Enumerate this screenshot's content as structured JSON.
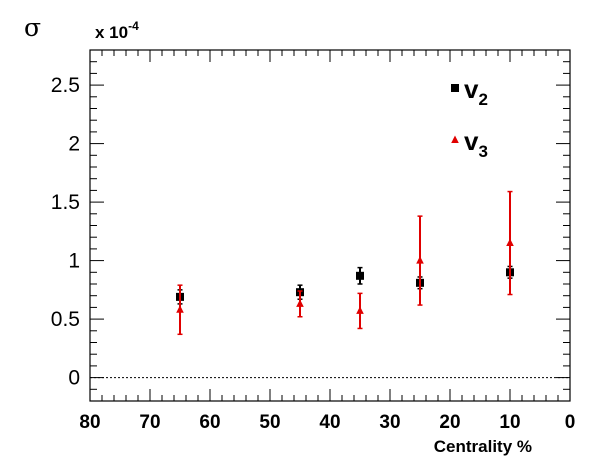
{
  "chart_data": {
    "type": "scatter",
    "ylabel": "σ",
    "xlabel": "Centrality %",
    "y_multiplier": {
      "base": "x 10",
      "exponent": "-4"
    },
    "xlim": [
      80,
      0
    ],
    "ylim": [
      -0.2,
      2.8
    ],
    "x_ticks": [
      80,
      70,
      60,
      50,
      40,
      30,
      20,
      10,
      0
    ],
    "x_tick_labels": [
      "80",
      "70",
      "60",
      "50",
      "40",
      "30",
      "20",
      "10",
      "0"
    ],
    "y_ticks": [
      0,
      0.5,
      1,
      1.5,
      2,
      2.5
    ],
    "y_tick_labels": [
      "0",
      "0.5",
      "1",
      "1.5",
      "2",
      "2.5"
    ],
    "reference_line": {
      "y": 0,
      "style": "dashed"
    },
    "legend_position": "top-right",
    "series": [
      {
        "name": "v",
        "subscript": "2",
        "color": "#000000",
        "marker": "square",
        "points": [
          {
            "x": 65,
            "y": 0.69,
            "yerr": 0.06
          },
          {
            "x": 45,
            "y": 0.73,
            "yerr": 0.06
          },
          {
            "x": 35,
            "y": 0.87,
            "yerr": 0.07
          },
          {
            "x": 25,
            "y": 0.81,
            "yerr": 0.05
          },
          {
            "x": 10,
            "y": 0.9,
            "yerr": 0.05
          }
        ]
      },
      {
        "name": "v",
        "subscript": "3",
        "color": "#e00000",
        "marker": "triangle",
        "points": [
          {
            "x": 65,
            "y": 0.58,
            "yerr": 0.21
          },
          {
            "x": 45,
            "y": 0.63,
            "yerr": 0.11
          },
          {
            "x": 35,
            "y": 0.57,
            "yerr": 0.15
          },
          {
            "x": 25,
            "y": 1.0,
            "yerr": 0.38
          },
          {
            "x": 10,
            "y": 1.15,
            "yerr": 0.44
          }
        ]
      }
    ]
  }
}
